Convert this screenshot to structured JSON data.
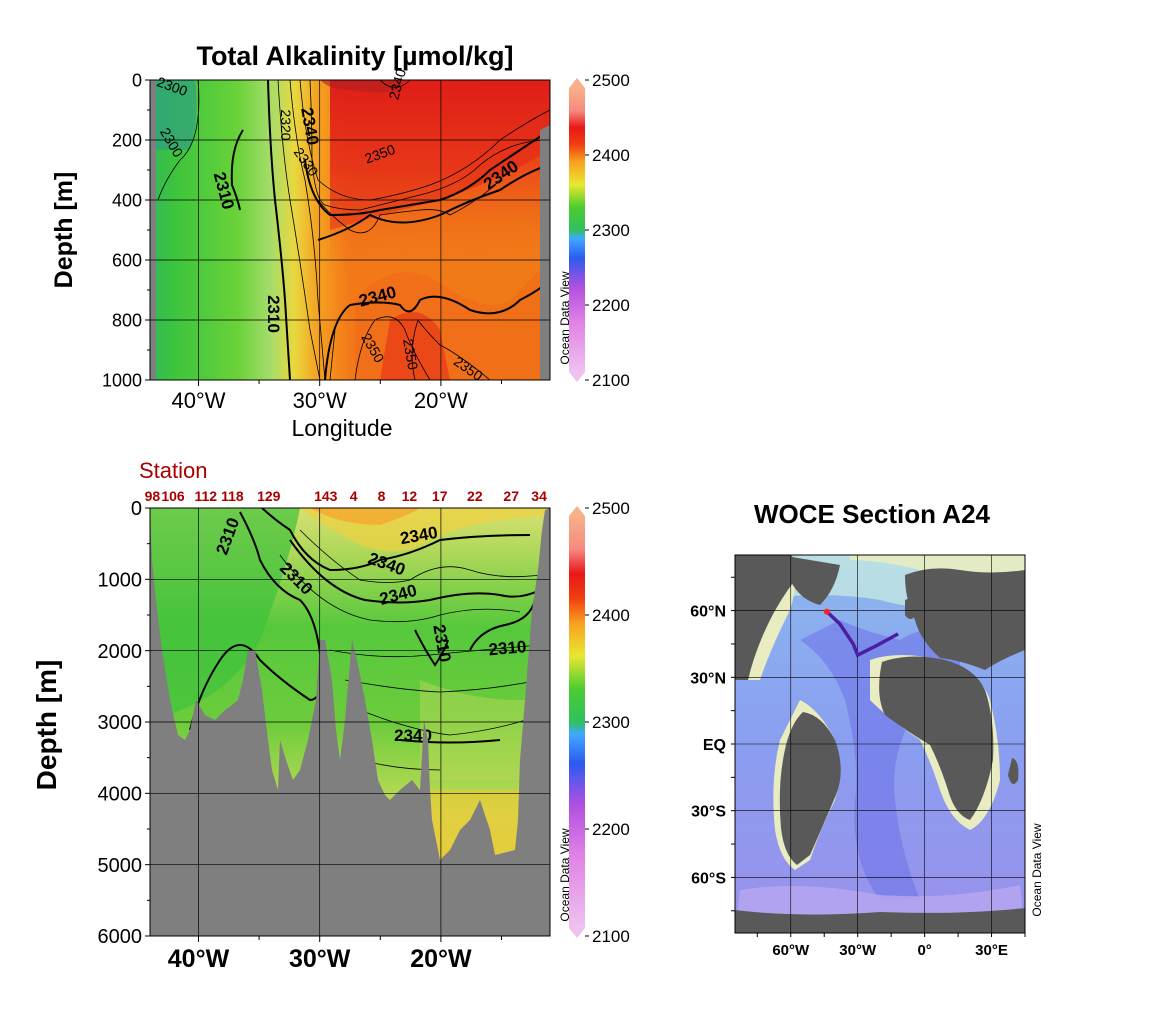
{
  "chart_data": [
    {
      "id": "top_section",
      "type": "heatmap",
      "title": "Total Alkalinity [µmol/kg]",
      "xlabel": "Longitude",
      "ylabel": "Depth [m]",
      "xlim": [
        -44,
        -11
      ],
      "ylim": [
        0,
        1000
      ],
      "y_reversed": true,
      "xticks": [
        {
          "value": -40,
          "label": "40°W"
        },
        {
          "value": -30,
          "label": "30°W"
        },
        {
          "value": -20,
          "label": "20°W"
        }
      ],
      "yticks": [
        {
          "value": 0,
          "label": "0"
        },
        {
          "value": 200,
          "label": "200"
        },
        {
          "value": 400,
          "label": "400"
        },
        {
          "value": 600,
          "label": "600"
        },
        {
          "value": 800,
          "label": "800"
        },
        {
          "value": 1000,
          "label": "1000"
        }
      ],
      "grid": true,
      "colorbar": {
        "min": 2100,
        "max": 2500,
        "ticks": [
          "2500",
          "2400",
          "2300",
          "2200",
          "2100"
        ],
        "credit": "Ocean Data View"
      },
      "contour_labels": [
        {
          "text": "2300",
          "x": -42.2,
          "y": 25,
          "rot": 20,
          "bold": false
        },
        {
          "text": "2300",
          "x": -42.3,
          "y": 210,
          "rot": 60,
          "bold": false
        },
        {
          "text": "2310",
          "x": -38.0,
          "y": 370,
          "rot": 75,
          "bold": true
        },
        {
          "text": "2320",
          "x": -32.9,
          "y": 150,
          "rot": 90,
          "bold": false
        },
        {
          "text": "2330",
          "x": -31.2,
          "y": 275,
          "rot": 55,
          "bold": false
        },
        {
          "text": "2340",
          "x": -30.9,
          "y": 155,
          "rot": 80,
          "bold": true
        },
        {
          "text": "2350",
          "x": -25.0,
          "y": 250,
          "rot": -20,
          "bold": false
        },
        {
          "text": "2340",
          "x": -15.0,
          "y": 320,
          "rot": -35,
          "bold": true
        },
        {
          "text": "2340",
          "x": -23.5,
          "y": 15,
          "rot": -75,
          "bold": false
        },
        {
          "text": "2310",
          "x": -33.9,
          "y": 780,
          "rot": 90,
          "bold": true
        },
        {
          "text": "2340",
          "x": -25.2,
          "y": 725,
          "rot": -15,
          "bold": true
        },
        {
          "text": "2350",
          "x": -25.7,
          "y": 895,
          "rot": 60,
          "bold": false
        },
        {
          "text": "2350",
          "x": -22.6,
          "y": 915,
          "rot": 80,
          "bold": false
        },
        {
          "text": "2350",
          "x": -17.8,
          "y": 965,
          "rot": 35,
          "bold": false
        }
      ]
    },
    {
      "id": "bottom_section",
      "type": "heatmap",
      "ylabel": "Depth [m]",
      "xlim": [
        -44,
        -11
      ],
      "ylim": [
        0,
        6000
      ],
      "y_reversed": true,
      "xticks": [
        {
          "value": -40,
          "label": "40°W"
        },
        {
          "value": -30,
          "label": "30°W"
        },
        {
          "value": -20,
          "label": "20°W"
        }
      ],
      "yticks": [
        {
          "value": 0,
          "label": "0"
        },
        {
          "value": 1000,
          "label": "1000"
        },
        {
          "value": 2000,
          "label": "2000"
        },
        {
          "value": 3000,
          "label": "3000"
        },
        {
          "value": 4000,
          "label": "4000"
        },
        {
          "value": 5000,
          "label": "5000"
        },
        {
          "value": 6000,
          "label": "6000"
        }
      ],
      "grid": true,
      "station_title": "Station",
      "stations": [
        {
          "label": "98",
          "x": -43.8
        },
        {
          "label": "106",
          "x": -42.1
        },
        {
          "label": "112",
          "x": -39.4
        },
        {
          "label": "118",
          "x": -37.2
        },
        {
          "label": "129",
          "x": -34.2
        },
        {
          "label": "143",
          "x": -29.5
        },
        {
          "label": "4",
          "x": -27.2
        },
        {
          "label": "8",
          "x": -24.9
        },
        {
          "label": "12",
          "x": -22.6
        },
        {
          "label": "17",
          "x": -20.1
        },
        {
          "label": "22",
          "x": -17.2
        },
        {
          "label": "27",
          "x": -14.2
        },
        {
          "label": "34",
          "x": -11.9
        }
      ],
      "colorbar": {
        "min": 2100,
        "max": 2500,
        "ticks": [
          "2500",
          "2400",
          "2300",
          "2200",
          "2100"
        ],
        "credit": "Ocean Data View"
      },
      "contour_labels": [
        {
          "text": "2310",
          "x": -37.5,
          "y": 400,
          "rot": -70,
          "bold": true
        },
        {
          "text": "2310",
          "x": -32.0,
          "y": 1000,
          "rot": 45,
          "bold": true
        },
        {
          "text": "2340",
          "x": -21.8,
          "y": 400,
          "rot": -10,
          "bold": true
        },
        {
          "text": "2340",
          "x": -24.5,
          "y": 800,
          "rot": 20,
          "bold": true
        },
        {
          "text": "2340",
          "x": -23.5,
          "y": 1230,
          "rot": -15,
          "bold": true
        },
        {
          "text": "2310",
          "x": -20.0,
          "y": 1900,
          "rot": 80,
          "bold": true
        },
        {
          "text": "2310",
          "x": -14.5,
          "y": 1980,
          "rot": -5,
          "bold": true
        },
        {
          "text": "2340",
          "x": -22.3,
          "y": 3200,
          "rot": 0,
          "bold": true
        }
      ]
    },
    {
      "id": "map",
      "type": "map",
      "title": "WOCE Section A24",
      "lon_range": [
        -85,
        45
      ],
      "lat_range": [
        -85,
        85
      ],
      "xticks": [
        {
          "value": -60,
          "label": "60°W"
        },
        {
          "value": -30,
          "label": "30°W"
        },
        {
          "value": 0,
          "label": "0°"
        },
        {
          "value": 30,
          "label": "30°E"
        }
      ],
      "yticks": [
        {
          "value": 60,
          "label": "60°N"
        },
        {
          "value": 30,
          "label": "30°N"
        },
        {
          "value": 0,
          "label": "EQ"
        },
        {
          "value": -30,
          "label": "30°S"
        },
        {
          "value": -60,
          "label": "60°S"
        }
      ],
      "credit": "Ocean Data View",
      "track": [
        [
          -43.8,
          59.5
        ],
        [
          -38,
          54
        ],
        [
          -32,
          45
        ],
        [
          -30,
          40
        ],
        [
          -22,
          44
        ],
        [
          -11.9,
          49.5
        ]
      ]
    }
  ]
}
